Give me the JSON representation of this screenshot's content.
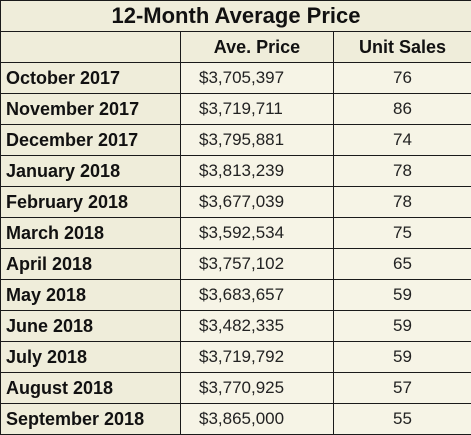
{
  "title": "12-Month Average Price",
  "headers": {
    "month": "",
    "price": "Ave. Price",
    "sales": "Unit Sales"
  },
  "rows": [
    {
      "month": "October 2017",
      "price": "$3,705,397",
      "sales": "76"
    },
    {
      "month": "November 2017",
      "price": "$3,719,711",
      "sales": "86"
    },
    {
      "month": "December 2017",
      "price": "$3,795,881",
      "sales": "74"
    },
    {
      "month": "January 2018",
      "price": "$3,813,239",
      "sales": "78"
    },
    {
      "month": "February 2018",
      "price": "$3,677,039",
      "sales": "78"
    },
    {
      "month": "March 2018",
      "price": "$3,592,534",
      "sales": "75"
    },
    {
      "month": "April 2018",
      "price": "$3,757,102",
      "sales": "65"
    },
    {
      "month": "May 2018",
      "price": "$3,683,657",
      "sales": "59"
    },
    {
      "month": "June 2018",
      "price": "$3,482,335",
      "sales": "59"
    },
    {
      "month": "July 2018",
      "price": "$3,719,792",
      "sales": "59"
    },
    {
      "month": "August 2018",
      "price": "$3,770,925",
      "sales": "57"
    },
    {
      "month": "September 2018",
      "price": "$3,865,000",
      "sales": "55"
    }
  ]
}
